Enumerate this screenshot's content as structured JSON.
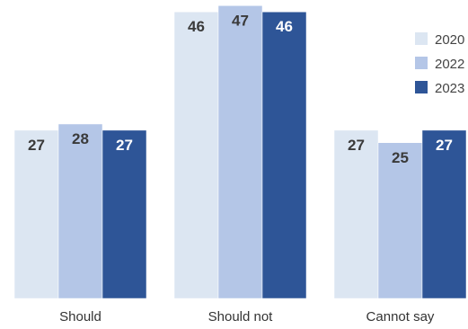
{
  "chart_data": {
    "type": "bar",
    "categories": [
      "Should",
      "Should not",
      "Cannot say"
    ],
    "series": [
      {
        "name": "2020",
        "values": [
          27,
          46,
          27
        ],
        "color": "#dce6f2"
      },
      {
        "name": "2022",
        "values": [
          28,
          47,
          25
        ],
        "color": "#b4c6e7"
      },
      {
        "name": "2023",
        "values": [
          27,
          46,
          27
        ],
        "color": "#2e5597"
      }
    ],
    "title": "",
    "xlabel": "",
    "ylabel": "",
    "ylim": [
      0,
      48
    ],
    "grid": false,
    "legend": "top-right",
    "data_labels": true,
    "label_colors": {
      "light": "#3a3a3a",
      "dark": "#ffffff"
    }
  }
}
